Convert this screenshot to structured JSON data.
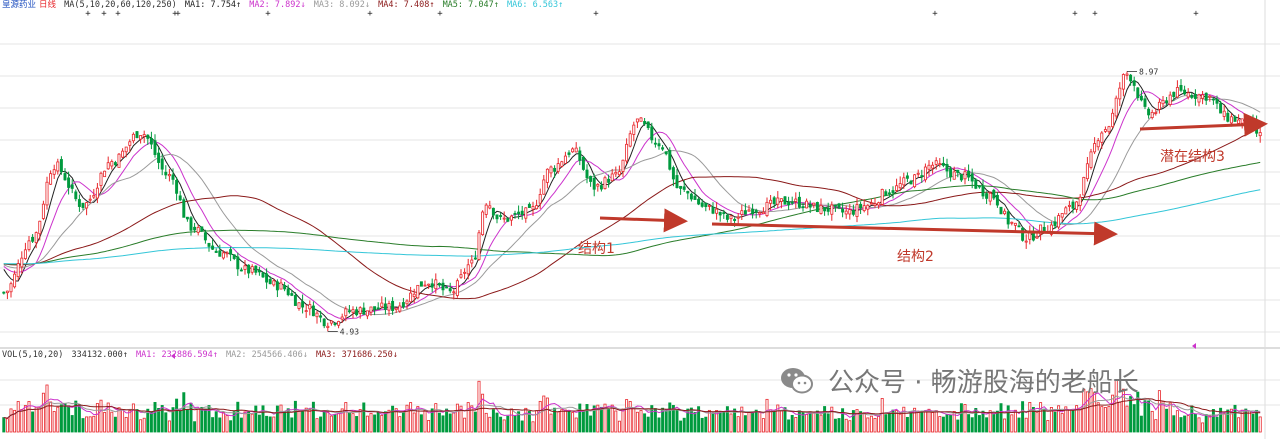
{
  "header": {
    "stock_name": "皇源药业",
    "period": "日线",
    "ma_params": "MA(5,10,20,60,120,250)",
    "ma1": "MA1: 7.754↑",
    "ma2": "MA2: 7.892↓",
    "ma3": "MA3: 8.092↓",
    "ma4": "MA4: 7.408↑",
    "ma5": "MA5: 7.047↑",
    "ma6": "MA6: 6.563↑"
  },
  "vol_header": {
    "params": "VOL(5,10,20)",
    "vol": "334132.000↑",
    "ma1": "MA1: 232886.594↑",
    "ma2": "MA2: 254566.406↓",
    "ma3": "MA3: 371686.250↓"
  },
  "annotations": {
    "structure1": "结构1",
    "structure2": "结构2",
    "structure3": "潜在结构3"
  },
  "watermark": {
    "text": "公众号 · 畅游股海的老船长",
    "icon": "wechat-icon"
  },
  "colors": {
    "up": "#e8262b",
    "down": "#009a3e",
    "ma1": "#222222",
    "ma2": "#cc33cc",
    "ma3": "#9a9a9a",
    "ma4": "#8b1a1a",
    "ma5": "#2a7d2a",
    "ma6": "#34c6d8",
    "annotation": "#c0392b",
    "grid": "#e6e6e6"
  },
  "chart_data": {
    "type": "candlestick",
    "price_max_label": "8.97",
    "price_min_label": "4.93",
    "ylim": [
      4.7,
      9.2
    ],
    "anchors": [
      [
        0,
        5.35
      ],
      [
        8,
        6.1
      ],
      [
        14,
        7.1
      ],
      [
        22,
        6.55
      ],
      [
        30,
        7.15
      ],
      [
        38,
        7.55
      ],
      [
        46,
        6.95
      ],
      [
        52,
        6.25
      ],
      [
        60,
        5.9
      ],
      [
        68,
        5.65
      ],
      [
        76,
        5.45
      ],
      [
        84,
        5.15
      ],
      [
        90,
        4.95
      ],
      [
        97,
        5.1
      ],
      [
        108,
        5.15
      ],
      [
        118,
        5.5
      ],
      [
        124,
        5.35
      ],
      [
        130,
        5.75
      ],
      [
        134,
        6.6
      ],
      [
        138,
        6.35
      ],
      [
        146,
        6.45
      ],
      [
        152,
        7.05
      ],
      [
        158,
        7.3
      ],
      [
        164,
        6.8
      ],
      [
        170,
        6.95
      ],
      [
        176,
        7.7
      ],
      [
        182,
        7.4
      ],
      [
        188,
        6.75
      ],
      [
        196,
        6.5
      ],
      [
        202,
        6.35
      ],
      [
        208,
        6.5
      ],
      [
        218,
        6.6
      ],
      [
        228,
        6.5
      ],
      [
        234,
        6.45
      ],
      [
        240,
        6.55
      ],
      [
        246,
        6.75
      ],
      [
        252,
        6.9
      ],
      [
        258,
        7.1
      ],
      [
        266,
        6.95
      ],
      [
        274,
        6.7
      ],
      [
        280,
        6.3
      ],
      [
        284,
        6.1
      ],
      [
        290,
        6.25
      ],
      [
        296,
        6.5
      ],
      [
        306,
        7.6
      ],
      [
        312,
        8.35
      ],
      [
        318,
        7.8
      ],
      [
        326,
        8.1
      ],
      [
        334,
        8.05
      ],
      [
        340,
        7.75
      ],
      [
        346,
        7.65
      ],
      [
        349,
        7.5
      ]
    ],
    "ma_periods": [
      5,
      10,
      20,
      60,
      120,
      250
    ],
    "volume_ylim": [
      0,
      700000
    ]
  }
}
